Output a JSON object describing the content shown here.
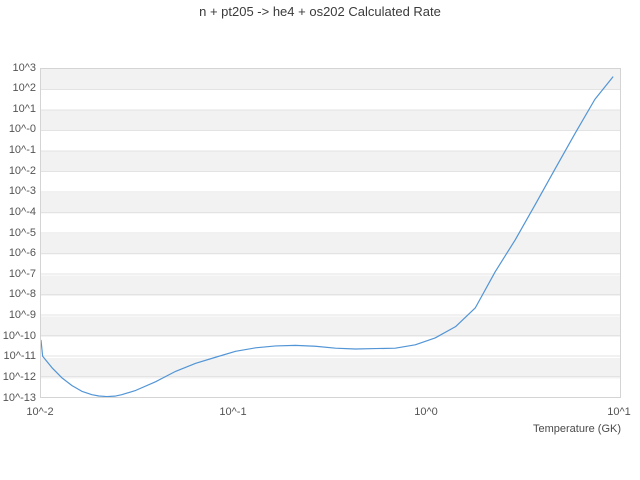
{
  "page": {
    "title": "n + pt205 -> he4 + os202 Calculated Rate"
  },
  "chart_data": {
    "type": "line",
    "title": "n + pt205 -> he4 + os202 Calculated Rate",
    "xlabel": "Temperature (GK)",
    "ylabel": "",
    "x_scale": "log",
    "y_scale": "log",
    "xlim": [
      0.01,
      10
    ],
    "ylim": [
      1e-13,
      1000
    ],
    "x_tick_labels": [
      "10^-2",
      "10^-1",
      "10^0",
      "10^1"
    ],
    "x_tick_values": [
      0.01,
      0.1,
      1,
      10
    ],
    "y_tick_labels": [
      "10^3",
      "10^2",
      "10^1",
      "10^-0",
      "10^-1",
      "10^-2",
      "10^-3",
      "10^-4",
      "10^-5",
      "10^-6",
      "10^-7",
      "10^-8",
      "10^-9",
      "10^-10",
      "10^-11",
      "10^-12",
      "10^-13"
    ],
    "y_tick_values": [
      1000.0,
      100.0,
      10.0,
      1.0,
      0.1,
      0.01,
      0.001,
      0.0001,
      1e-05,
      1e-06,
      1e-07,
      1e-08,
      1e-09,
      1e-10,
      1e-11,
      1e-12,
      1e-13
    ],
    "grid": "horizontal decade gridlines over alternating gray/white bands, no vertical gridlines",
    "legend": "none",
    "line_color": "#5295d6",
    "band_color": "#f2f2f2",
    "gridline_color": "#e3e3e3",
    "border_color": "#d4d4d4",
    "series": [
      {
        "name": "calculated rate",
        "points": [
          [
            0.01,
            5.8e-11
          ],
          [
            0.0102,
            9.7e-12
          ],
          [
            0.0114,
            2.7e-12
          ],
          [
            0.0129,
            8.3e-13
          ],
          [
            0.0145,
            3.6e-13
          ],
          [
            0.0163,
            1.9e-13
          ],
          [
            0.0184,
            1.3e-13
          ],
          [
            0.02,
            1.12e-13
          ],
          [
            0.022,
            1.05e-13
          ],
          [
            0.0242,
            1.1e-13
          ],
          [
            0.0263,
            1.3e-13
          ],
          [
            0.0311,
            2.1e-13
          ],
          [
            0.0395,
            5.6e-13
          ],
          [
            0.0502,
            1.8e-12
          ],
          [
            0.0637,
            4.4e-12
          ],
          [
            0.0809,
            8.7e-12
          ],
          [
            0.1027,
            1.7e-11
          ],
          [
            0.1305,
            2.5e-11
          ],
          [
            0.166,
            3.1e-11
          ],
          [
            0.21,
            3.3e-11
          ],
          [
            0.267,
            3e-11
          ],
          [
            0.34,
            2.4e-11
          ],
          [
            0.431,
            2.2e-11
          ],
          [
            0.547,
            2.3e-11
          ],
          [
            0.695,
            2.4e-11
          ],
          [
            0.883,
            3.5e-11
          ],
          [
            1.12,
            7.6e-11
          ],
          [
            1.43,
            2.7e-10
          ],
          [
            1.81,
            2.2e-09
          ],
          [
            2.3,
            1.3e-07
          ],
          [
            2.92,
            4.6e-06
          ],
          [
            3.7,
            0.00023
          ],
          [
            4.7,
            0.013
          ],
          [
            5.97,
            0.7
          ],
          [
            7.58,
            33
          ],
          [
            9.4,
            410
          ]
        ]
      }
    ]
  }
}
